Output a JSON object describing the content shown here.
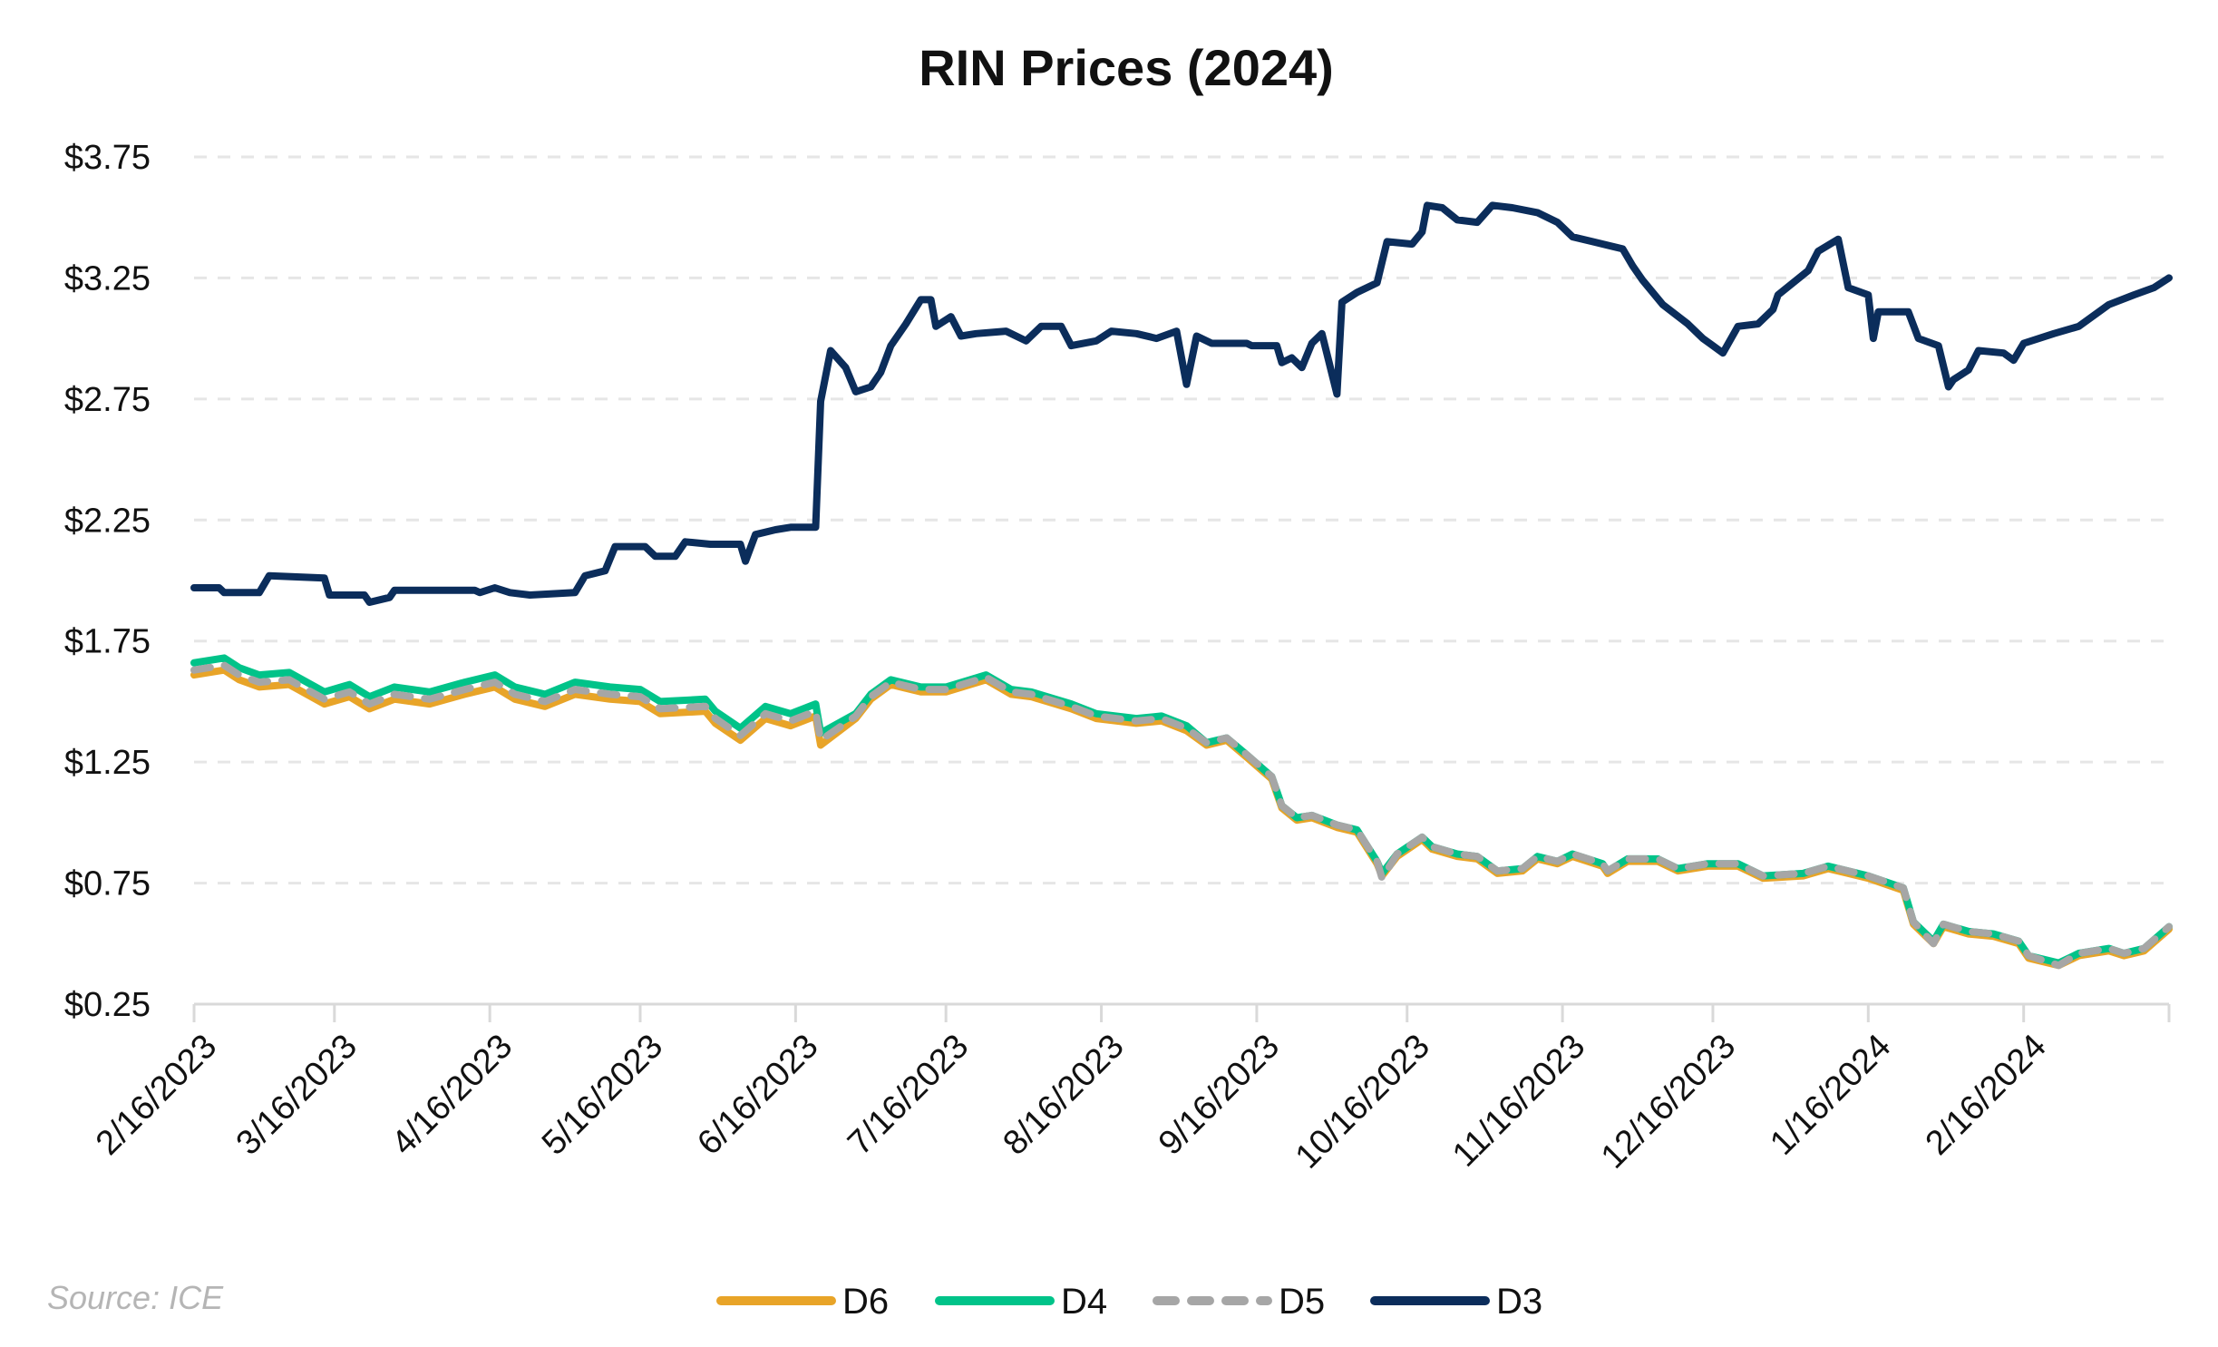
{
  "chart_data": {
    "type": "line",
    "title": "RIN Prices (2024)",
    "source": "Source: ICE",
    "xlabel": "",
    "ylabel": "",
    "xlim": [
      "2023-02-16",
      "2024-03-16"
    ],
    "ylim": [
      0.25,
      3.75
    ],
    "y_ticks": [
      0.25,
      0.75,
      1.25,
      1.75,
      2.25,
      2.75,
      3.25,
      3.75
    ],
    "y_tick_labels": [
      "$0.25",
      "$0.75",
      "$1.25",
      "$1.75",
      "$2.25",
      "$2.75",
      "$3.25",
      "$3.75"
    ],
    "x_ticks": [
      "2023-02-16",
      "2023-03-16",
      "2023-04-16",
      "2023-05-16",
      "2023-06-16",
      "2023-07-16",
      "2023-08-16",
      "2023-09-16",
      "2023-10-16",
      "2023-11-16",
      "2023-12-16",
      "2024-01-16",
      "2024-02-16"
    ],
    "x_tick_labels": [
      "2/16/2023",
      "3/16/2023",
      "4/16/2023",
      "5/16/2023",
      "6/16/2023",
      "7/16/2023",
      "8/16/2023",
      "9/16/2023",
      "10/16/2023",
      "11/16/2023",
      "12/16/2023",
      "1/16/2024",
      "2/16/2024"
    ],
    "grid": "horizontal dashed",
    "legend_position": "bottom",
    "series": [
      {
        "name": "D6",
        "color": "#E8A428",
        "dashed": false,
        "x": [
          "2023-02-16",
          "2023-02-22",
          "2023-02-25",
          "2023-03-01",
          "2023-03-07",
          "2023-03-14",
          "2023-03-19",
          "2023-03-23",
          "2023-03-28",
          "2023-04-04",
          "2023-04-11",
          "2023-04-17",
          "2023-04-21",
          "2023-04-27",
          "2023-05-03",
          "2023-05-10",
          "2023-05-16",
          "2023-05-20",
          "2023-05-29",
          "2023-05-31",
          "2023-06-05",
          "2023-06-10",
          "2023-06-15",
          "2023-06-20",
          "2023-06-21",
          "2023-06-28",
          "2023-07-01",
          "2023-07-05",
          "2023-07-11",
          "2023-07-16",
          "2023-07-24",
          "2023-07-29",
          "2023-08-02",
          "2023-08-10",
          "2023-08-15",
          "2023-08-23",
          "2023-08-28",
          "2023-09-02",
          "2023-09-06",
          "2023-09-10",
          "2023-09-14",
          "2023-09-19",
          "2023-09-21",
          "2023-09-24",
          "2023-09-27",
          "2023-10-02",
          "2023-10-06",
          "2023-10-10",
          "2023-10-11",
          "2023-10-14",
          "2023-10-19",
          "2023-10-21",
          "2023-10-26",
          "2023-10-30",
          "2023-11-03",
          "2023-11-08",
          "2023-11-11",
          "2023-11-15",
          "2023-11-18",
          "2023-11-24",
          "2023-11-25",
          "2023-11-29",
          "2023-12-05",
          "2023-12-09",
          "2023-12-15",
          "2023-12-21",
          "2023-12-26",
          "2024-01-03",
          "2024-01-08",
          "2024-01-16",
          "2024-01-23",
          "2024-01-25",
          "2024-01-29",
          "2024-01-31",
          "2024-02-05",
          "2024-02-10",
          "2024-02-15",
          "2024-02-17",
          "2024-02-23",
          "2024-02-27",
          "2024-03-04",
          "2024-03-07",
          "2024-03-11",
          "2024-03-16"
        ],
        "y": [
          1.61,
          1.63,
          1.59,
          1.56,
          1.57,
          1.49,
          1.52,
          1.47,
          1.51,
          1.49,
          1.53,
          1.56,
          1.51,
          1.48,
          1.53,
          1.51,
          1.5,
          1.45,
          1.46,
          1.41,
          1.34,
          1.43,
          1.4,
          1.44,
          1.32,
          1.43,
          1.51,
          1.57,
          1.54,
          1.54,
          1.59,
          1.53,
          1.52,
          1.47,
          1.43,
          1.41,
          1.42,
          1.38,
          1.32,
          1.34,
          1.27,
          1.18,
          1.06,
          1.01,
          1.02,
          0.98,
          0.96,
          0.83,
          0.78,
          0.86,
          0.93,
          0.89,
          0.86,
          0.85,
          0.79,
          0.8,
          0.85,
          0.83,
          0.86,
          0.82,
          0.79,
          0.84,
          0.84,
          0.8,
          0.82,
          0.82,
          0.77,
          0.78,
          0.81,
          0.77,
          0.72,
          0.58,
          0.5,
          0.57,
          0.54,
          0.53,
          0.5,
          0.44,
          0.41,
          0.45,
          0.47,
          0.45,
          0.47,
          0.56
        ]
      },
      {
        "name": "D4",
        "color": "#00C389",
        "dashed": false,
        "x": [
          "2023-02-16",
          "2023-02-22",
          "2023-02-25",
          "2023-03-01",
          "2023-03-07",
          "2023-03-14",
          "2023-03-19",
          "2023-03-23",
          "2023-03-28",
          "2023-04-04",
          "2023-04-11",
          "2023-04-17",
          "2023-04-21",
          "2023-04-27",
          "2023-05-03",
          "2023-05-10",
          "2023-05-16",
          "2023-05-20",
          "2023-05-29",
          "2023-05-31",
          "2023-06-05",
          "2023-06-10",
          "2023-06-15",
          "2023-06-20",
          "2023-06-21",
          "2023-06-28",
          "2023-07-01",
          "2023-07-05",
          "2023-07-11",
          "2023-07-16",
          "2023-07-24",
          "2023-07-29",
          "2023-08-02",
          "2023-08-10",
          "2023-08-15",
          "2023-08-23",
          "2023-08-28",
          "2023-09-02",
          "2023-09-06",
          "2023-09-10",
          "2023-09-14",
          "2023-09-19",
          "2023-09-21",
          "2023-09-24",
          "2023-09-27",
          "2023-10-02",
          "2023-10-06",
          "2023-10-10",
          "2023-10-11",
          "2023-10-14",
          "2023-10-19",
          "2023-10-21",
          "2023-10-26",
          "2023-10-30",
          "2023-11-03",
          "2023-11-08",
          "2023-11-11",
          "2023-11-15",
          "2023-11-18",
          "2023-11-24",
          "2023-11-25",
          "2023-11-29",
          "2023-12-05",
          "2023-12-09",
          "2023-12-15",
          "2023-12-21",
          "2023-12-26",
          "2024-01-03",
          "2024-01-08",
          "2024-01-16",
          "2024-01-23",
          "2024-01-25",
          "2024-01-29",
          "2024-01-31",
          "2024-02-05",
          "2024-02-10",
          "2024-02-15",
          "2024-02-17",
          "2024-02-23",
          "2024-02-27",
          "2024-03-04",
          "2024-03-07",
          "2024-03-11",
          "2024-03-16"
        ],
        "y": [
          1.66,
          1.68,
          1.64,
          1.61,
          1.62,
          1.54,
          1.57,
          1.52,
          1.56,
          1.54,
          1.58,
          1.61,
          1.56,
          1.53,
          1.58,
          1.56,
          1.55,
          1.5,
          1.51,
          1.46,
          1.39,
          1.48,
          1.45,
          1.49,
          1.37,
          1.45,
          1.53,
          1.59,
          1.56,
          1.56,
          1.61,
          1.55,
          1.54,
          1.49,
          1.45,
          1.43,
          1.44,
          1.4,
          1.33,
          1.35,
          1.28,
          1.19,
          1.07,
          1.02,
          1.03,
          0.99,
          0.97,
          0.84,
          0.79,
          0.87,
          0.94,
          0.9,
          0.87,
          0.86,
          0.8,
          0.81,
          0.86,
          0.84,
          0.87,
          0.83,
          0.8,
          0.85,
          0.85,
          0.81,
          0.83,
          0.83,
          0.78,
          0.79,
          0.82,
          0.78,
          0.73,
          0.59,
          0.51,
          0.58,
          0.55,
          0.54,
          0.51,
          0.45,
          0.42,
          0.46,
          0.48,
          0.46,
          0.48,
          0.57
        ]
      },
      {
        "name": "D5",
        "color": "#A6A6A6",
        "dashed": true,
        "x": [
          "2023-02-16",
          "2023-02-22",
          "2023-02-25",
          "2023-03-01",
          "2023-03-07",
          "2023-03-14",
          "2023-03-19",
          "2023-03-23",
          "2023-03-28",
          "2023-04-04",
          "2023-04-11",
          "2023-04-17",
          "2023-04-21",
          "2023-04-27",
          "2023-05-03",
          "2023-05-10",
          "2023-05-16",
          "2023-05-20",
          "2023-05-29",
          "2023-05-31",
          "2023-06-05",
          "2023-06-10",
          "2023-06-15",
          "2023-06-20",
          "2023-06-21",
          "2023-06-28",
          "2023-07-01",
          "2023-07-05",
          "2023-07-11",
          "2023-07-16",
          "2023-07-24",
          "2023-07-29",
          "2023-08-02",
          "2023-08-10",
          "2023-08-15",
          "2023-08-23",
          "2023-08-28",
          "2023-09-02",
          "2023-09-06",
          "2023-09-10",
          "2023-09-14",
          "2023-09-19",
          "2023-09-21",
          "2023-09-24",
          "2023-09-27",
          "2023-10-02",
          "2023-10-06",
          "2023-10-10",
          "2023-10-11",
          "2023-10-14",
          "2023-10-19",
          "2023-10-21",
          "2023-10-26",
          "2023-10-30",
          "2023-11-03",
          "2023-11-08",
          "2023-11-11",
          "2023-11-15",
          "2023-11-18",
          "2023-11-24",
          "2023-11-25",
          "2023-11-29",
          "2023-12-05",
          "2023-12-09",
          "2023-12-15",
          "2023-12-21",
          "2023-12-26",
          "2024-01-03",
          "2024-01-08",
          "2024-01-16",
          "2024-01-23",
          "2024-01-25",
          "2024-01-29",
          "2024-01-31",
          "2024-02-05",
          "2024-02-10",
          "2024-02-15",
          "2024-02-17",
          "2024-02-23",
          "2024-02-27",
          "2024-03-04",
          "2024-03-07",
          "2024-03-11",
          "2024-03-16"
        ],
        "y": [
          1.63,
          1.65,
          1.61,
          1.58,
          1.59,
          1.51,
          1.54,
          1.49,
          1.53,
          1.51,
          1.55,
          1.58,
          1.53,
          1.5,
          1.55,
          1.53,
          1.52,
          1.47,
          1.48,
          1.43,
          1.36,
          1.45,
          1.42,
          1.46,
          1.34,
          1.44,
          1.52,
          1.58,
          1.55,
          1.55,
          1.6,
          1.54,
          1.53,
          1.48,
          1.44,
          1.42,
          1.43,
          1.39,
          1.33,
          1.35,
          1.28,
          1.19,
          1.07,
          1.02,
          1.03,
          0.99,
          0.97,
          0.84,
          0.77,
          0.87,
          0.94,
          0.9,
          0.87,
          0.86,
          0.8,
          0.81,
          0.86,
          0.84,
          0.87,
          0.83,
          0.8,
          0.85,
          0.85,
          0.81,
          0.83,
          0.83,
          0.78,
          0.79,
          0.82,
          0.78,
          0.73,
          0.59,
          0.5,
          0.58,
          0.55,
          0.54,
          0.51,
          0.45,
          0.41,
          0.46,
          0.48,
          0.46,
          0.48,
          0.57
        ]
      },
      {
        "name": "D3",
        "color": "#0B2D5B",
        "dashed": false,
        "x": [
          "2023-02-16",
          "2023-02-21",
          "2023-02-22",
          "2023-03-01",
          "2023-03-03",
          "2023-03-14",
          "2023-03-15",
          "2023-03-22",
          "2023-03-23",
          "2023-03-27",
          "2023-03-28",
          "2023-04-13",
          "2023-04-14",
          "2023-04-17",
          "2023-04-20",
          "2023-04-24",
          "2023-05-03",
          "2023-05-05",
          "2023-05-09",
          "2023-05-11",
          "2023-05-17",
          "2023-05-19",
          "2023-05-23",
          "2023-05-25",
          "2023-05-30",
          "2023-06-05",
          "2023-06-06",
          "2023-06-08",
          "2023-06-12",
          "2023-06-15",
          "2023-06-20",
          "2023-06-21",
          "2023-06-23",
          "2023-06-26",
          "2023-06-28",
          "2023-07-01",
          "2023-07-03",
          "2023-07-05",
          "2023-07-08",
          "2023-07-11",
          "2023-07-13",
          "2023-07-14",
          "2023-07-17",
          "2023-07-19",
          "2023-07-22",
          "2023-07-28",
          "2023-08-01",
          "2023-08-04",
          "2023-08-08",
          "2023-08-10",
          "2023-08-15",
          "2023-08-18",
          "2023-08-23",
          "2023-08-27",
          "2023-08-31",
          "2023-09-02",
          "2023-09-04",
          "2023-09-07",
          "2023-09-14",
          "2023-09-15",
          "2023-09-20",
          "2023-09-21",
          "2023-09-23",
          "2023-09-25",
          "2023-09-27",
          "2023-09-29",
          "2023-10-02",
          "2023-10-03",
          "2023-10-06",
          "2023-10-10",
          "2023-10-12",
          "2023-10-17",
          "2023-10-19",
          "2023-10-20",
          "2023-10-23",
          "2023-10-26",
          "2023-10-30",
          "2023-11-02",
          "2023-11-06",
          "2023-11-11",
          "2023-11-15",
          "2023-11-18",
          "2023-11-22",
          "2023-11-28",
          "2023-11-30",
          "2023-12-02",
          "2023-12-06",
          "2023-12-11",
          "2023-12-14",
          "2023-12-16",
          "2023-12-18",
          "2023-12-21",
          "2023-12-25",
          "2023-12-28",
          "2023-12-29",
          "2024-01-04",
          "2024-01-06",
          "2024-01-10",
          "2024-01-12",
          "2024-01-16",
          "2024-01-17",
          "2024-01-18",
          "2024-01-24",
          "2024-01-26",
          "2024-01-30",
          "2024-02-01",
          "2024-02-02",
          "2024-02-05",
          "2024-02-07",
          "2024-02-12",
          "2024-02-14",
          "2024-02-16",
          "2024-02-22",
          "2024-02-27",
          "2024-03-04",
          "2024-03-09",
          "2024-03-13",
          "2024-03-16"
        ],
        "y": [
          1.97,
          1.97,
          1.95,
          1.95,
          2.02,
          2.01,
          1.94,
          1.94,
          1.91,
          1.93,
          1.96,
          1.96,
          1.95,
          1.97,
          1.95,
          1.94,
          1.95,
          2.02,
          2.04,
          2.14,
          2.14,
          2.1,
          2.1,
          2.16,
          2.15,
          2.15,
          2.08,
          2.19,
          2.21,
          2.22,
          2.22,
          2.74,
          2.95,
          2.88,
          2.78,
          2.8,
          2.86,
          2.97,
          3.06,
          3.16,
          3.16,
          3.05,
          3.09,
          3.01,
          3.02,
          3.03,
          2.99,
          3.05,
          3.05,
          2.97,
          2.99,
          3.03,
          3.02,
          3.0,
          3.03,
          2.81,
          3.01,
          2.98,
          2.98,
          2.97,
          2.97,
          2.9,
          2.92,
          2.88,
          2.98,
          3.02,
          2.77,
          3.15,
          3.19,
          3.23,
          3.4,
          3.39,
          3.44,
          3.55,
          3.54,
          3.49,
          3.48,
          3.55,
          3.54,
          3.52,
          3.48,
          3.42,
          3.4,
          3.37,
          3.3,
          3.24,
          3.14,
          3.06,
          3.0,
          2.97,
          2.94,
          3.05,
          3.06,
          3.12,
          3.18,
          3.28,
          3.36,
          3.41,
          3.21,
          3.18,
          3.0,
          3.11,
          3.11,
          3.0,
          2.97,
          2.8,
          2.83,
          2.87,
          2.95,
          2.94,
          2.91,
          2.98,
          3.02,
          3.05,
          3.14,
          3.18,
          3.21,
          3.25
        ]
      }
    ]
  }
}
